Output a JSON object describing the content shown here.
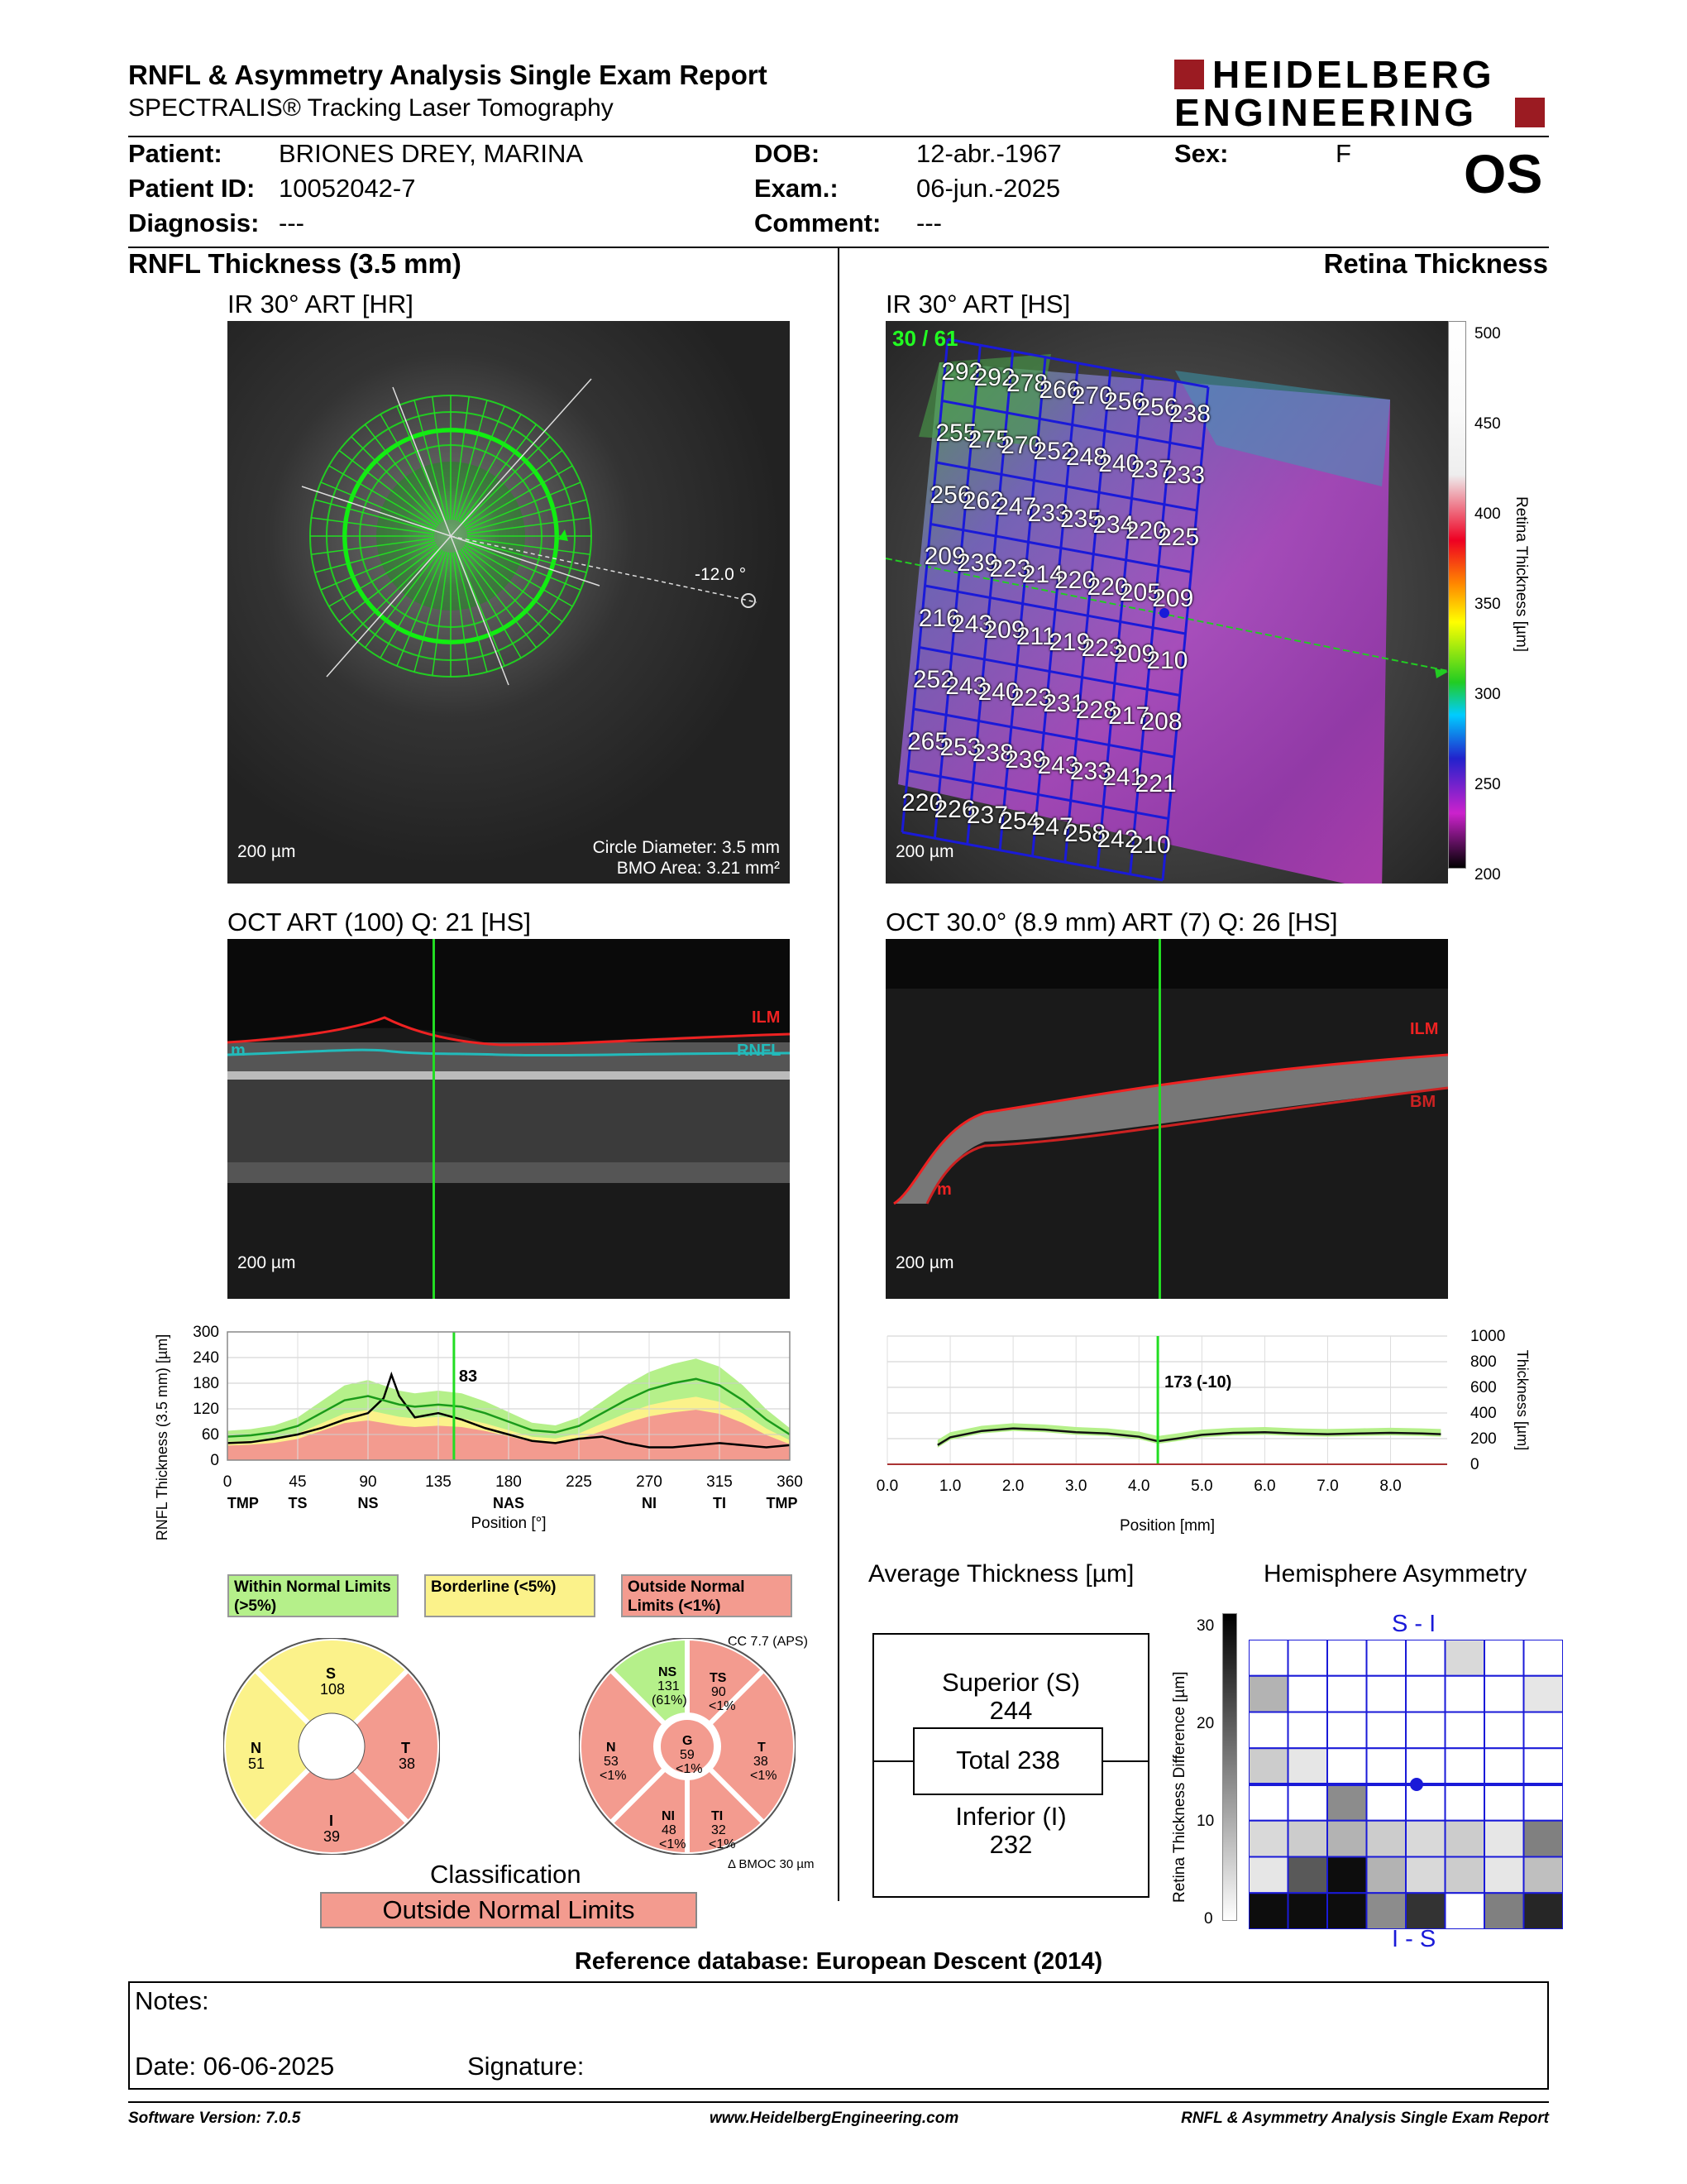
{
  "report": {
    "title": "RNFL & Asymmetry Analysis Single Exam Report",
    "subtitle": "SPECTRALIS® Tracking Laser Tomography",
    "eye": "OS"
  },
  "brand": {
    "line1": "HEIDELBERG",
    "line2": "ENGINEERING",
    "color": "#9b1b22"
  },
  "patient": {
    "patient_label": "Patient:",
    "patient_value": "BRIONES DREY, MARINA",
    "id_label": "Patient ID:",
    "id_value": "10052042-7",
    "diagnosis_label": "Diagnosis:",
    "diagnosis_value": "---",
    "dob_label": "DOB:",
    "dob_value": "12-abr.-1967",
    "exam_label": "Exam.:",
    "exam_value": "06-jun.-2025",
    "comment_label": "Comment:",
    "comment_value": "---",
    "sex_label": "Sex:",
    "sex_value": "F"
  },
  "left": {
    "section_title": "RNFL Thickness (3.5 mm)",
    "ir_title": "IR 30° ART [HR]",
    "ir_scale": "200 µm",
    "ir_angle": "-12.0 °",
    "circle_diameter": "Circle Diameter: 3.5 mm",
    "bmo_area": "BMO Area: 3.21 mm²",
    "oct_title": "OCT ART (100) Q: 21 [HS]",
    "oct_scale": "200 µm",
    "oct_ilm": "ILM",
    "oct_rnfl": "RNFL",
    "oct_m": "m"
  },
  "right": {
    "section_title": "Retina Thickness",
    "ir_title": "IR 30° ART [HS]",
    "ir_counter": "30 / 61",
    "ir_scale": "200 µm",
    "colorbar_label": "Retina Thickness [µm]",
    "colorbar_ticks": [
      "500",
      "450",
      "400",
      "350",
      "300",
      "250",
      "200"
    ],
    "oct_title": "OCT 30.0° (8.9 mm) ART (7) Q: 26 [HS]",
    "oct_scale": "200 µm",
    "oct_ilm": "ILM",
    "oct_bm": "BM",
    "oct_m": "m"
  },
  "grid_values": [
    [
      "292",
      "292",
      "278",
      "266",
      "270",
      "256",
      "256",
      "238"
    ],
    [
      "255",
      "275",
      "270",
      "252",
      "248",
      "240",
      "237",
      "233"
    ],
    [
      "256",
      "262",
      "247",
      "233",
      "235",
      "234",
      "220",
      "225"
    ],
    [
      "209",
      "239",
      "223",
      "214",
      "220",
      "220",
      "205",
      "209"
    ],
    [
      "216",
      "243",
      "209",
      "211",
      "219",
      "223",
      "209",
      "210"
    ],
    [
      "252",
      "243",
      "240",
      "223",
      "231",
      "228",
      "217",
      "208"
    ],
    [
      "265",
      "253",
      "238",
      "239",
      "243",
      "233",
      "241",
      "221"
    ],
    [
      "220",
      "226",
      "237",
      "254",
      "247",
      "258",
      "242",
      "210"
    ]
  ],
  "chart_data": [
    {
      "type": "line",
      "title": "",
      "ylabel": "RNFL Thickness (3.5 mm) [µm]",
      "xlabel": "Position [°]",
      "ylim": [
        0,
        300
      ],
      "xlim": [
        0,
        360
      ],
      "yticks": [
        "300",
        "240",
        "180",
        "120",
        "60",
        "0"
      ],
      "xticks": [
        "0",
        "45",
        "90",
        "135",
        "180",
        "225",
        "270",
        "315",
        "360"
      ],
      "sector_labels": [
        "TMP",
        "TS",
        "NS",
        "NAS",
        "NI",
        "TI",
        "TMP"
      ],
      "cursor_label": "83",
      "cursor_x": 145,
      "x": [
        0,
        15,
        30,
        45,
        60,
        75,
        90,
        100,
        105,
        110,
        120,
        135,
        150,
        165,
        180,
        195,
        210,
        225,
        240,
        255,
        270,
        285,
        300,
        315,
        330,
        345,
        360
      ],
      "series": [
        {
          "values": [
            40,
            42,
            50,
            60,
            75,
            95,
            110,
            145,
            200,
            150,
            100,
            110,
            95,
            75,
            60,
            45,
            40,
            50,
            55,
            40,
            30,
            30,
            35,
            40,
            35,
            30,
            35
          ]
        },
        {
          "values": [
            55,
            58,
            65,
            80,
            110,
            140,
            150,
            140,
            135,
            130,
            125,
            130,
            125,
            110,
            90,
            70,
            65,
            80,
            110,
            140,
            165,
            180,
            190,
            175,
            140,
            95,
            60
          ]
        }
      ]
    },
    {
      "type": "line",
      "title": "",
      "ylabel": "Thickness [µm]",
      "xlabel": "Position [mm]",
      "ylim": [
        0,
        1000
      ],
      "xlim": [
        0,
        8.9
      ],
      "yticks": [
        "1000",
        "800",
        "600",
        "400",
        "200",
        "0"
      ],
      "xticks": [
        "0.0",
        "1.0",
        "2.0",
        "3.0",
        "4.0",
        "5.0",
        "6.0",
        "7.0",
        "8.0"
      ],
      "cursor_label": "173 (-10)",
      "cursor_x": 4.3,
      "x": [
        0.8,
        1.0,
        1.5,
        2.0,
        2.5,
        3.0,
        3.5,
        4.0,
        4.3,
        4.6,
        5.0,
        5.5,
        6.0,
        6.5,
        7.0,
        7.5,
        8.0,
        8.5,
        8.8
      ],
      "series": [
        {
          "values": [
            150,
            210,
            260,
            280,
            270,
            250,
            240,
            215,
            180,
            200,
            230,
            245,
            250,
            240,
            235,
            240,
            245,
            240,
            235
          ]
        }
      ]
    }
  ],
  "legend": {
    "within": "Within Normal Limits (>5%)",
    "borderline": "Borderline (<5%)",
    "outside": "Outside Normal Limits (<1%)",
    "colors": {
      "green": "#b5f08a",
      "yellow": "#fbf28a",
      "red": "#f39b8f"
    }
  },
  "pie_left": {
    "s": {
      "name": "S",
      "value": "108"
    },
    "t": {
      "name": "T",
      "value": "38"
    },
    "i": {
      "name": "I",
      "value": "39"
    },
    "n": {
      "name": "N",
      "value": "51"
    }
  },
  "pie_right": {
    "cc": "CC 7.7 (APS)",
    "ns": {
      "name": "NS",
      "value": "131",
      "pct": "(61%)"
    },
    "ts": {
      "name": "TS",
      "value": "90",
      "pct": "<1%"
    },
    "t": {
      "name": "T",
      "value": "38",
      "pct": "<1%"
    },
    "ti": {
      "name": "TI",
      "value": "32",
      "pct": "<1%"
    },
    "ni": {
      "name": "NI",
      "value": "48",
      "pct": "<1%"
    },
    "n": {
      "name": "N",
      "value": "53",
      "pct": "<1%"
    },
    "g": {
      "name": "G",
      "value": "59",
      "pct": "<1%"
    },
    "bmoc": "BMOC 30 µm"
  },
  "classification": {
    "label": "Classification",
    "value": "Outside Normal Limits"
  },
  "avg_thickness": {
    "title": "Average Thickness [µm]",
    "superior_label": "Superior (S)",
    "superior_value": "244",
    "total_label": "Total 238",
    "inferior_label": "Inferior (I)",
    "inferior_value": "232"
  },
  "hemisphere": {
    "title": "Hemisphere Asymmetry",
    "top_label": "S - I",
    "bottom_label": "I - S",
    "axis_label": "Retina Thickness Difference [µm]",
    "ticks": [
      "30",
      "20",
      "10",
      "0"
    ],
    "cells": [
      [
        0,
        0,
        0,
        0,
        0,
        0.15,
        0,
        0
      ],
      [
        0.3,
        0,
        0,
        0,
        0,
        0,
        0,
        0.1
      ],
      [
        0,
        0,
        0,
        0,
        0,
        0,
        0,
        0
      ],
      [
        0.2,
        0.1,
        0,
        0,
        0,
        0,
        0,
        0
      ],
      [
        0,
        0,
        0.45,
        0,
        0,
        0,
        0,
        0
      ],
      [
        0.15,
        0.2,
        0.3,
        0.2,
        0.15,
        0.2,
        0.1,
        0.5
      ],
      [
        0.1,
        0.65,
        0.95,
        0.3,
        0.15,
        0.2,
        0.1,
        0.25
      ],
      [
        0.95,
        0.95,
        0.95,
        0.45,
        0.8,
        0,
        0.5,
        0.85
      ]
    ]
  },
  "reference": "Reference database: European Descent (2014)",
  "notes": {
    "label": "Notes:",
    "date": "Date: 06-06-2025",
    "signature": "Signature:"
  },
  "footer": {
    "software": "Software Version: 7.0.5",
    "website": "www.HeidelbergEngineering.com",
    "report_name": "RNFL & Asymmetry Analysis Single Exam Report"
  }
}
